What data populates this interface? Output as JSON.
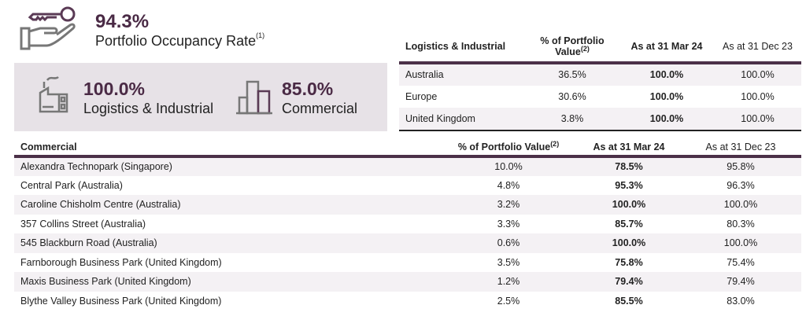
{
  "summary": {
    "rate": "94.3%",
    "label": "Portfolio Occupancy Rate",
    "note": "(1)"
  },
  "segments": [
    {
      "value": "100.0%",
      "label": "Logistics & Industrial"
    },
    {
      "value": "85.0%",
      "label": "Commercial"
    }
  ],
  "li_table": {
    "headers": [
      "Logistics & Industrial",
      "% of Portfolio Value",
      "As at 31 Mar 24",
      "As at 31 Dec 23"
    ],
    "note": "(2)",
    "rows": [
      [
        "Australia",
        "36.5%",
        "100.0%",
        "100.0%"
      ],
      [
        "Europe",
        "30.6%",
        "100.0%",
        "100.0%"
      ],
      [
        "United Kingdom",
        "3.8%",
        "100.0%",
        "100.0%"
      ]
    ]
  },
  "commercial_table": {
    "headers": [
      "Commercial",
      "% of Portfolio Value",
      "As at 31 Mar 24",
      "As at 31 Dec 23"
    ],
    "note": "(2)",
    "rows": [
      [
        "Alexandra Technopark (Singapore)",
        "10.0%",
        "78.5%",
        "95.8%"
      ],
      [
        "Central Park (Australia)",
        "4.8%",
        "95.3%",
        "96.3%"
      ],
      [
        "Caroline Chisholm Centre (Australia)",
        "3.2%",
        "100.0%",
        "100.0%"
      ],
      [
        "357 Collins Street (Australia)",
        "3.3%",
        "85.7%",
        "80.3%"
      ],
      [
        "545 Blackburn Road (Australia)",
        "0.6%",
        "100.0%",
        "100.0%"
      ],
      [
        "Farnborough Business Park (United Kingdom)",
        "3.5%",
        "75.8%",
        "75.4%"
      ],
      [
        "Maxis Business Park (United Kingdom)",
        "1.2%",
        "79.4%",
        "79.4%"
      ],
      [
        "Blythe Valley Business Park (United Kingdom)",
        "2.5%",
        "85.5%",
        "83.0%"
      ]
    ]
  },
  "colors": {
    "accent": "#4a2a45",
    "panel": "#e7e2e7"
  }
}
